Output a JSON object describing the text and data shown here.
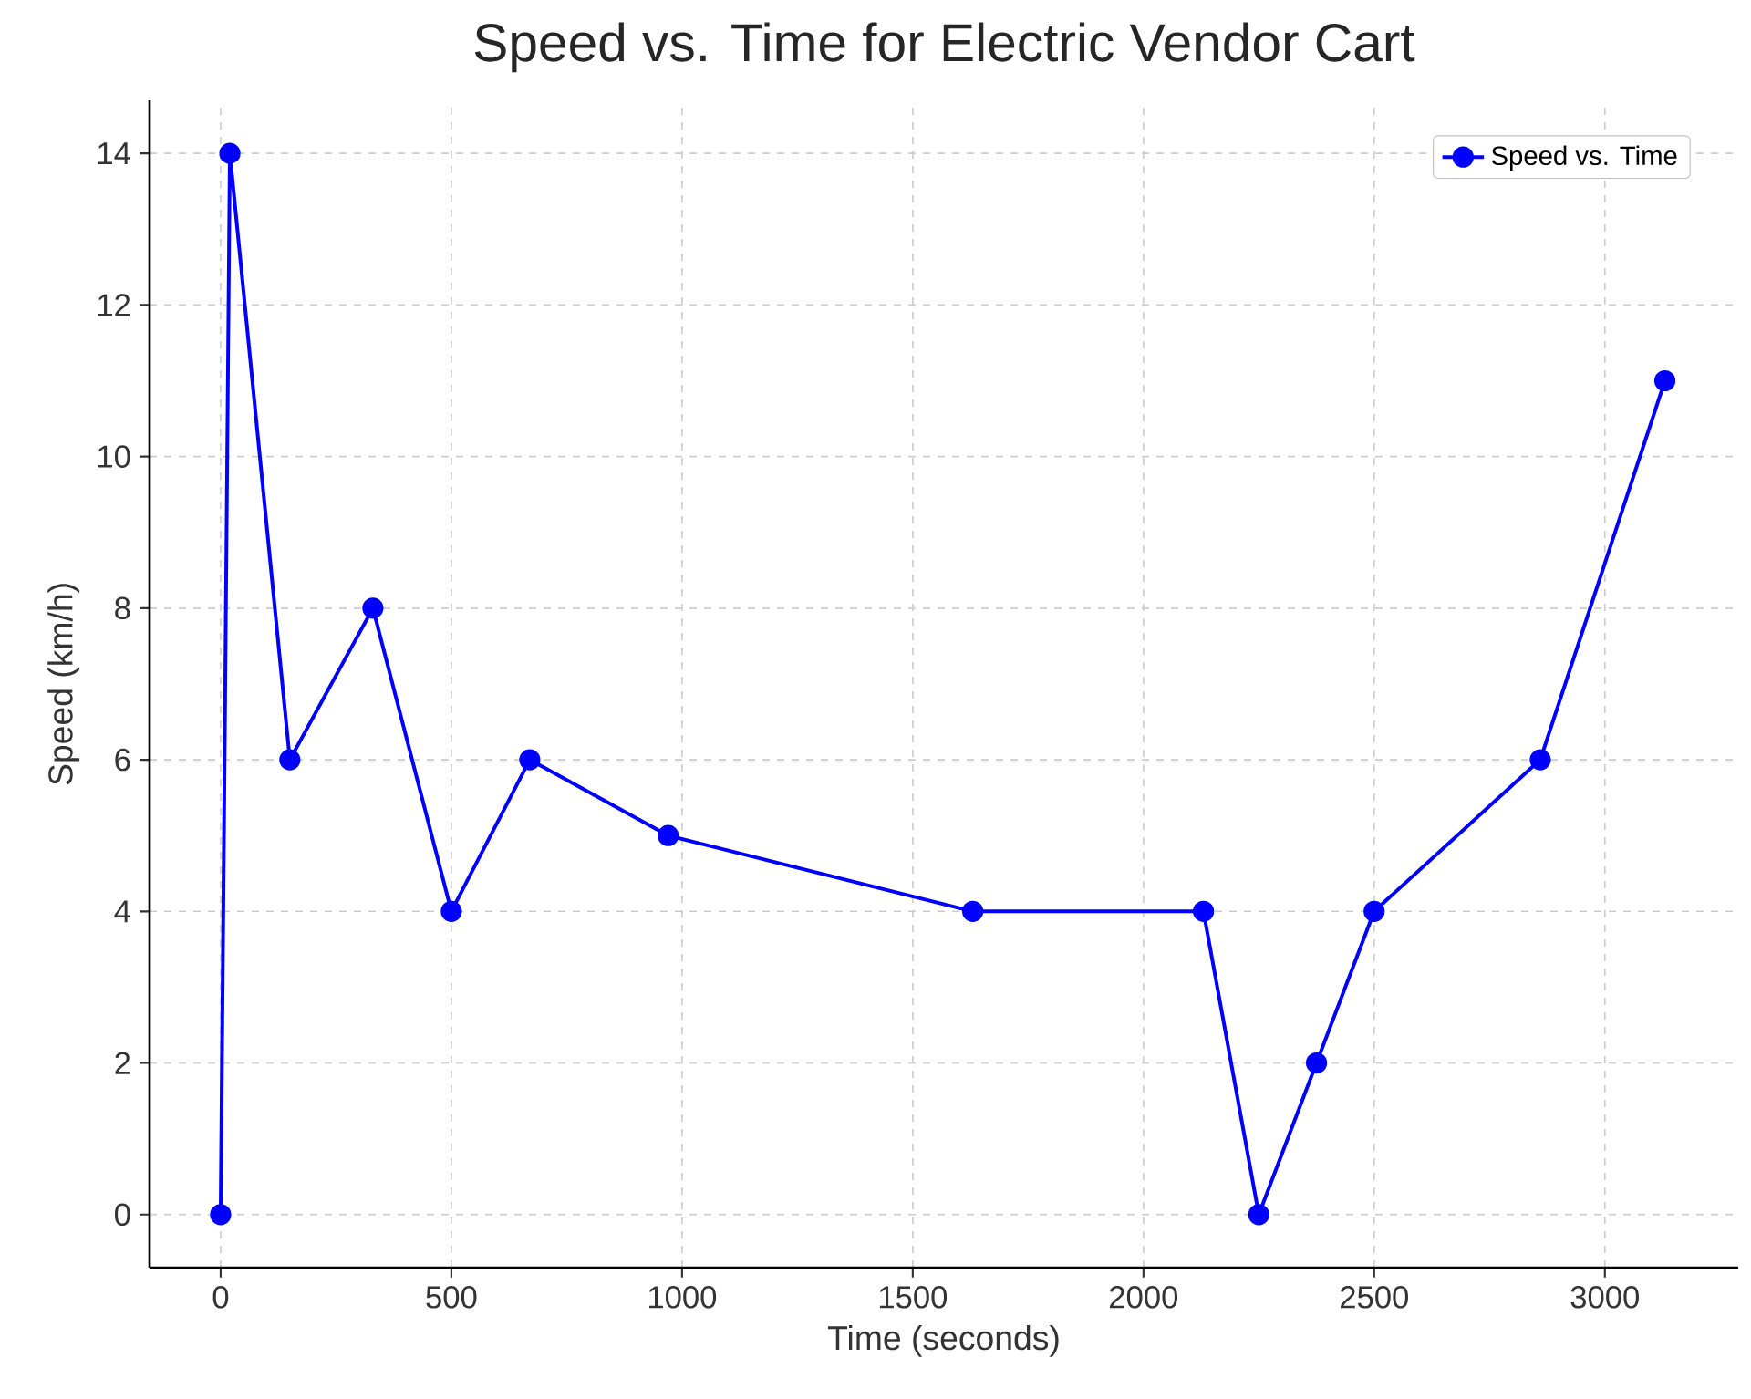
{
  "chart_data": {
    "type": "line",
    "title": "Speed vs. Time for Electric Vendor Cart",
    "xlabel": "Time (seconds)",
    "ylabel": "Speed (km/h)",
    "series": [
      {
        "name": "Speed vs. Time",
        "color": "#0000ff",
        "x": [
          0,
          20,
          150,
          330,
          500,
          670,
          970,
          1630,
          2130,
          2250,
          2375,
          2500,
          2860,
          3130
        ],
        "values": [
          0,
          14,
          6,
          8,
          4,
          6,
          5,
          4,
          4,
          0,
          2,
          4,
          6,
          11
        ]
      }
    ],
    "xlim": [
      -154,
      3289
    ],
    "ylim": [
      -0.7,
      14.7
    ],
    "xticks": [
      0,
      500,
      1000,
      1500,
      2000,
      2500,
      3000
    ],
    "yticks": [
      0,
      2,
      4,
      6,
      8,
      10,
      12,
      14
    ],
    "grid": true,
    "legend": "top right",
    "marker": "circle",
    "line_style": "solid"
  }
}
